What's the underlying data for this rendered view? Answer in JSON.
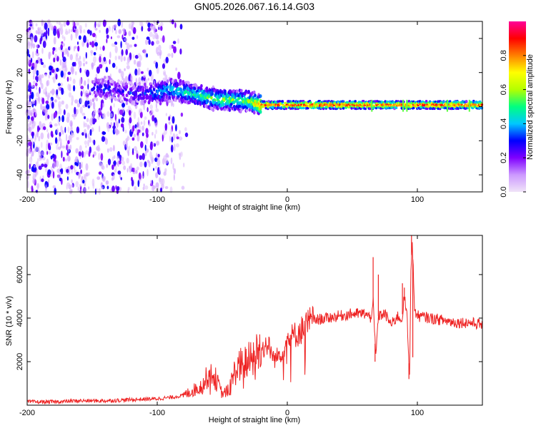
{
  "title": "GN05.2026.067.16.14.G03",
  "chart_data": [
    {
      "type": "heatmap",
      "title": "GN05.2026.067.16.14.G03",
      "xlabel": "Height of straight line (km)",
      "ylabel": "Frequency (Hz)",
      "xlim": [
        -200,
        150
      ],
      "ylim": [
        -50,
        50
      ],
      "x_ticks": [
        -200,
        -100,
        0,
        100
      ],
      "y_ticks": [
        -40,
        -20,
        0,
        20,
        40
      ],
      "colorbar": {
        "label": "Normalized spectral amplitude",
        "range": [
          0,
          1
        ],
        "ticks": [
          "0.0",
          "0.2",
          "0.4",
          "0.6",
          "0.8"
        ],
        "colors": [
          "#f0e4f8",
          "#cc99ff",
          "#7f00ff",
          "#0000ff",
          "#00c8ff",
          "#00ff80",
          "#b4ff00",
          "#ffff00",
          "#ff8000",
          "#ff0000",
          "#ff0099"
        ]
      },
      "ridge": {
        "x": [
          -150,
          -140,
          -130,
          -120,
          -110,
          -100,
          -90,
          -80,
          -70,
          -60,
          -50,
          -40,
          -30,
          -20,
          0,
          20,
          40,
          60,
          80,
          100,
          120,
          140,
          150
        ],
        "freq": [
          10,
          11,
          9,
          8,
          8,
          8,
          10,
          9,
          7,
          5,
          4,
          4,
          3,
          1,
          1,
          1,
          1,
          1,
          1,
          1,
          1,
          1,
          1
        ],
        "amplitude": [
          0.25,
          0.3,
          0.25,
          0.3,
          0.3,
          0.4,
          0.45,
          0.45,
          0.5,
          0.55,
          0.6,
          0.55,
          0.55,
          0.85,
          0.9,
          0.9,
          0.9,
          0.9,
          0.9,
          0.9,
          0.9,
          0.9,
          0.85
        ]
      },
      "noise_region": {
        "x_range": [
          -200,
          -80
        ],
        "amplitude": 0.15
      }
    },
    {
      "type": "line",
      "xlabel": "Height of straight line (km)",
      "ylabel": "SNR (10 * v/v)",
      "xlim": [
        -200,
        150
      ],
      "ylim": [
        0,
        7800
      ],
      "x_ticks": [
        -200,
        -100,
        0,
        100
      ],
      "y_ticks": [
        2000,
        4000,
        6000
      ],
      "color": "#ee2222",
      "series": [
        {
          "name": "SNR",
          "x": [
            -200,
            -180,
            -160,
            -140,
            -120,
            -100,
            -90,
            -80,
            -75,
            -65,
            -60,
            -55,
            -50,
            -45,
            -40,
            -35,
            -30,
            -25,
            -20,
            -15,
            -10,
            -5,
            0,
            5,
            10,
            15,
            20,
            30,
            40,
            50,
            60,
            64,
            66,
            68,
            70,
            75,
            80,
            85,
            88,
            90,
            92,
            94,
            95,
            96,
            98,
            100,
            110,
            120,
            130,
            140,
            150
          ],
          "y": [
            150,
            150,
            200,
            200,
            250,
            300,
            350,
            450,
            600,
            900,
            1500,
            1200,
            500,
            700,
            1600,
            1900,
            2000,
            2300,
            2600,
            2800,
            2100,
            2400,
            3000,
            3200,
            3400,
            3700,
            3900,
            4000,
            4100,
            4200,
            4200,
            4000,
            4700,
            2200,
            4100,
            4200,
            3700,
            4100,
            3900,
            5000,
            4100,
            1200,
            6300,
            7500,
            4300,
            4100,
            4000,
            3900,
            3800,
            3800,
            3700
          ]
        }
      ],
      "spikes": [
        {
          "x": 66,
          "y": 6800
        },
        {
          "x": 67.5,
          "y": 2000
        },
        {
          "x": 70,
          "y": 6000
        },
        {
          "x": 88.5,
          "y": 5600
        },
        {
          "x": 90,
          "y": 5400
        },
        {
          "x": 93.5,
          "y": 1200
        },
        {
          "x": 95.5,
          "y": 7800
        },
        {
          "x": 96.5,
          "y": 2200
        }
      ]
    }
  ]
}
